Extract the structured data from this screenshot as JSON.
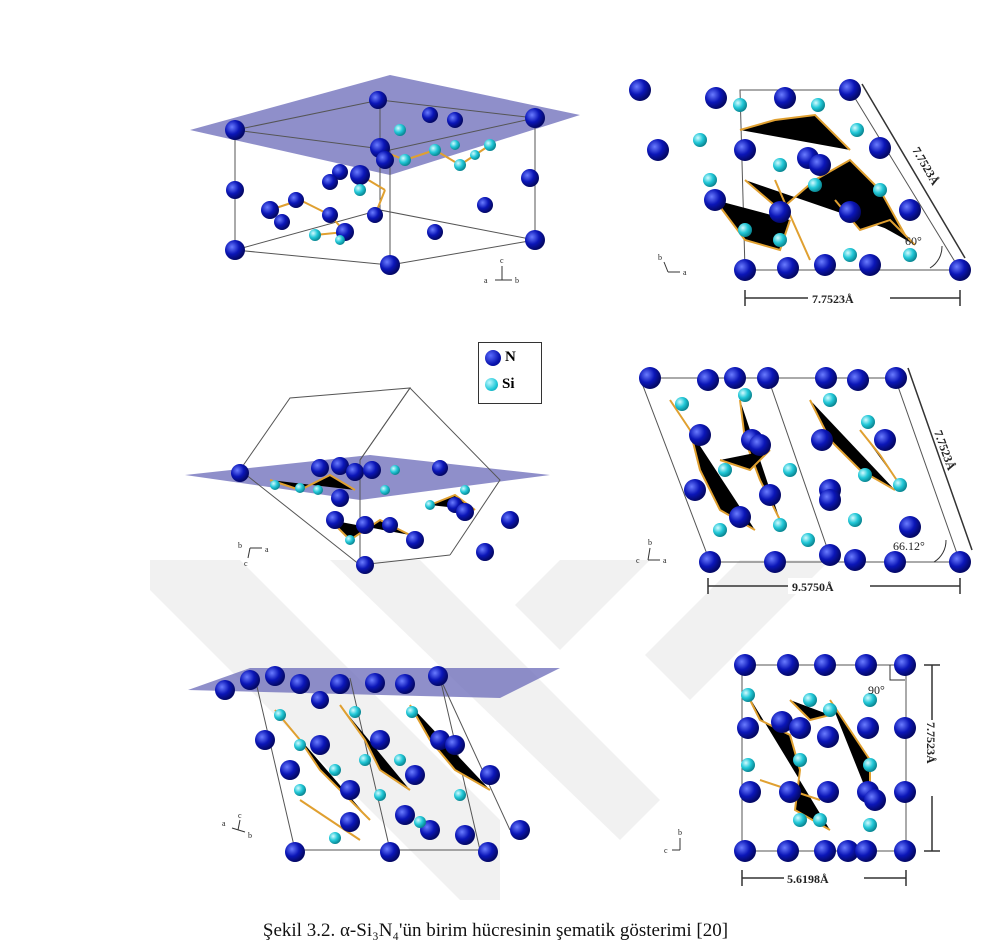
{
  "legend": {
    "n_label": "N",
    "si_label": "Si"
  },
  "dimensions": {
    "top_right_side": "7.7523Å",
    "top_right_bottom": "7.7523Å",
    "top_right_angle": "60°",
    "mid_right_side": "7.7523Å",
    "mid_right_bottom": "9.5750Å",
    "mid_right_angle": "66.12°",
    "bot_right_side": "7.7523Å",
    "bot_right_bottom": "5.6198Å",
    "bot_right_angle": "90°"
  },
  "axes": {
    "top_left": {
      "c": "c",
      "a": "a",
      "b": "b"
    },
    "top_right": {
      "b": "b",
      "a": "a"
    },
    "mid_left": {
      "b": "b",
      "c": "c",
      "a": "a"
    },
    "mid_right": {
      "b": "b",
      "c": "c",
      "a": "a"
    },
    "bot_left": {
      "a": "a",
      "c": "c",
      "b": "b"
    },
    "bot_right": {
      "b": "b",
      "c": "c"
    }
  },
  "caption": "Şekil 3.2. α-Si₃N₄'ün birim hücresinin şematik gösterimi [20]",
  "colors": {
    "nitrogen": "#0a14b0",
    "silicon": "#20c8d8",
    "bond": "#e0a030",
    "plane": "#6a6ab8"
  }
}
